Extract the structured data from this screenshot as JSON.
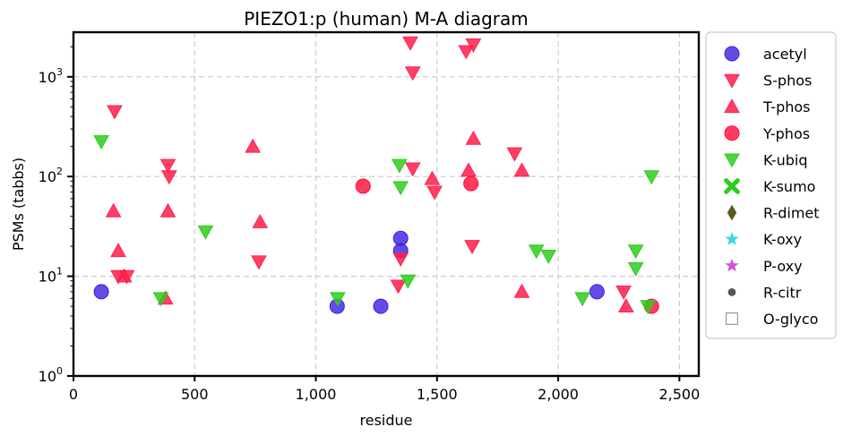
{
  "chart_data": {
    "type": "scatter",
    "title": "PIEZO1:p (human) M-A diagram",
    "xlabel": "residue",
    "ylabel": "PSMs (tabbs)",
    "xlim": [
      0,
      2580
    ],
    "ylim": [
      1,
      2800
    ],
    "yscale": "log",
    "grid": true,
    "legend_position": "outside-right",
    "x_ticks": [
      {
        "value": 0,
        "label": "0"
      },
      {
        "value": 500,
        "label": "500"
      },
      {
        "value": 1000,
        "label": "1,000"
      },
      {
        "value": 1500,
        "label": "1,500"
      },
      {
        "value": 2000,
        "label": "2,000"
      },
      {
        "value": 2500,
        "label": "2,500"
      }
    ],
    "y_ticks": [
      {
        "value": 1,
        "base": "10",
        "exp": "0"
      },
      {
        "value": 10,
        "base": "10",
        "exp": "1"
      },
      {
        "value": 100,
        "base": "10",
        "exp": "2"
      },
      {
        "value": 1000,
        "base": "10",
        "exp": "3"
      }
    ],
    "series": [
      {
        "name": "acetyl",
        "marker": "circle",
        "color": "#3b1fe0",
        "points": [
          [
            115,
            7
          ],
          [
            1088,
            5
          ],
          [
            1268,
            5
          ],
          [
            1350,
            24
          ],
          [
            1350,
            18
          ],
          [
            2160,
            7
          ]
        ]
      },
      {
        "name": "S-phos",
        "marker": "triangle-down",
        "color": "#ff1f4b",
        "points": [
          [
            170,
            450
          ],
          [
            185,
            10
          ],
          [
            220,
            10
          ],
          [
            390,
            130
          ],
          [
            395,
            100
          ],
          [
            765,
            14
          ],
          [
            1340,
            8
          ],
          [
            1350,
            15
          ],
          [
            1390,
            2200
          ],
          [
            1400,
            1100
          ],
          [
            1400,
            120
          ],
          [
            1490,
            70
          ],
          [
            1620,
            1800
          ],
          [
            1650,
            2100
          ],
          [
            1645,
            20
          ],
          [
            1820,
            170
          ],
          [
            2270,
            7
          ]
        ]
      },
      {
        "name": "T-phos",
        "marker": "triangle-up",
        "color": "#ff1f4b",
        "points": [
          [
            165,
            45
          ],
          [
            185,
            18
          ],
          [
            210,
            10
          ],
          [
            380,
            6
          ],
          [
            390,
            45
          ],
          [
            740,
            200
          ],
          [
            770,
            35
          ],
          [
            1480,
            95
          ],
          [
            1630,
            115
          ],
          [
            1650,
            240
          ],
          [
            1850,
            115
          ],
          [
            1850,
            7
          ],
          [
            2280,
            5
          ]
        ]
      },
      {
        "name": "Y-phos",
        "marker": "circle",
        "color": "#ff0a3a",
        "points": [
          [
            1195,
            80
          ],
          [
            1640,
            85
          ],
          [
            2385,
            5
          ]
        ]
      },
      {
        "name": "K-ubiq",
        "marker": "triangle-down",
        "color": "#2ecc1f",
        "points": [
          [
            115,
            225
          ],
          [
            360,
            6
          ],
          [
            545,
            28
          ],
          [
            1090,
            6
          ],
          [
            1345,
            130
          ],
          [
            1350,
            78
          ],
          [
            1380,
            9
          ],
          [
            1910,
            18
          ],
          [
            1960,
            16
          ],
          [
            2100,
            6
          ],
          [
            2320,
            18
          ],
          [
            2320,
            12
          ],
          [
            2370,
            5
          ],
          [
            2385,
            100
          ]
        ]
      },
      {
        "name": "K-sumo",
        "marker": "x",
        "color": "#2ecc1f",
        "points": []
      },
      {
        "name": "R-dimet",
        "marker": "diamond",
        "color": "#5a5a1f",
        "points": []
      },
      {
        "name": "K-oxy",
        "marker": "star",
        "color": "#1fd0d0",
        "points": []
      },
      {
        "name": "P-oxy",
        "marker": "star",
        "color": "#cc33dd",
        "points": []
      },
      {
        "name": "R-citr",
        "marker": "small-circle",
        "color": "#555555",
        "points": []
      },
      {
        "name": "O-glyco",
        "marker": "square-open",
        "color": "#999999",
        "points": []
      }
    ]
  }
}
